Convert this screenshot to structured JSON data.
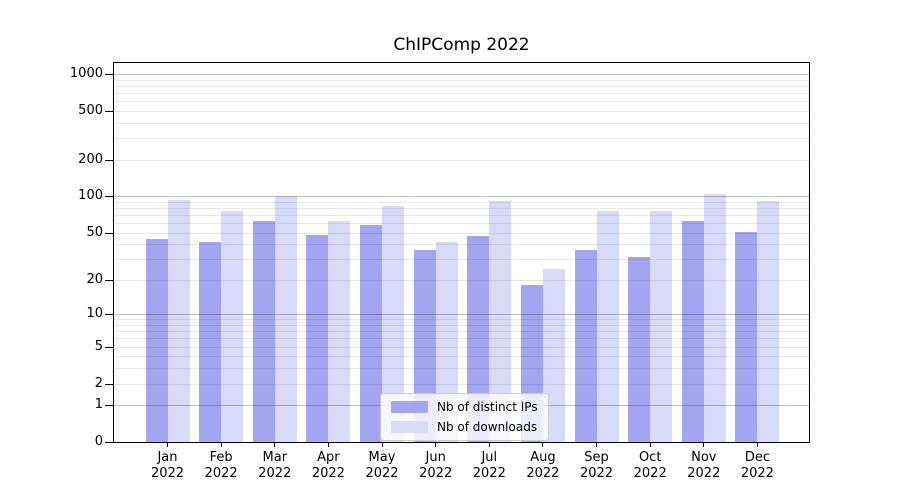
{
  "chart_data": {
    "type": "bar",
    "title": "ChIPComp 2022",
    "categories": [
      "Jan",
      "Feb",
      "Mar",
      "Apr",
      "May",
      "Jun",
      "Jul",
      "Aug",
      "Sep",
      "Oct",
      "Nov",
      "Dec"
    ],
    "year_label": "2022",
    "series": [
      {
        "name": "Nb of distinct IPs",
        "key": "distinct-ips",
        "color": "#a2a5f2",
        "values": [
          44,
          42,
          62,
          48,
          58,
          36,
          47,
          18,
          36,
          31,
          63,
          51
        ]
      },
      {
        "name": "Nb of downloads",
        "key": "downloads",
        "color": "#d8daf9",
        "values": [
          93,
          75,
          100,
          63,
          83,
          42,
          92,
          25,
          76,
          76,
          105,
          91
        ]
      }
    ],
    "xlabel": "",
    "ylabel": "",
    "yscale": "log1p",
    "yticks": [
      0,
      1,
      2,
      5,
      10,
      20,
      50,
      100,
      200,
      500,
      1000
    ],
    "ylim": [
      0,
      1230
    ],
    "grid": {
      "on": true,
      "major_levels": [
        1,
        10,
        100,
        1000
      ],
      "minor_levels": "2-9 per decade"
    },
    "legend_position": "lower center"
  },
  "colors": {
    "background": "#ffffff",
    "spine": "#000000",
    "bar_distinct_ips": "#a2a5f2",
    "bar_downloads": "#d8daf9",
    "legend_border": "#cccccc"
  }
}
